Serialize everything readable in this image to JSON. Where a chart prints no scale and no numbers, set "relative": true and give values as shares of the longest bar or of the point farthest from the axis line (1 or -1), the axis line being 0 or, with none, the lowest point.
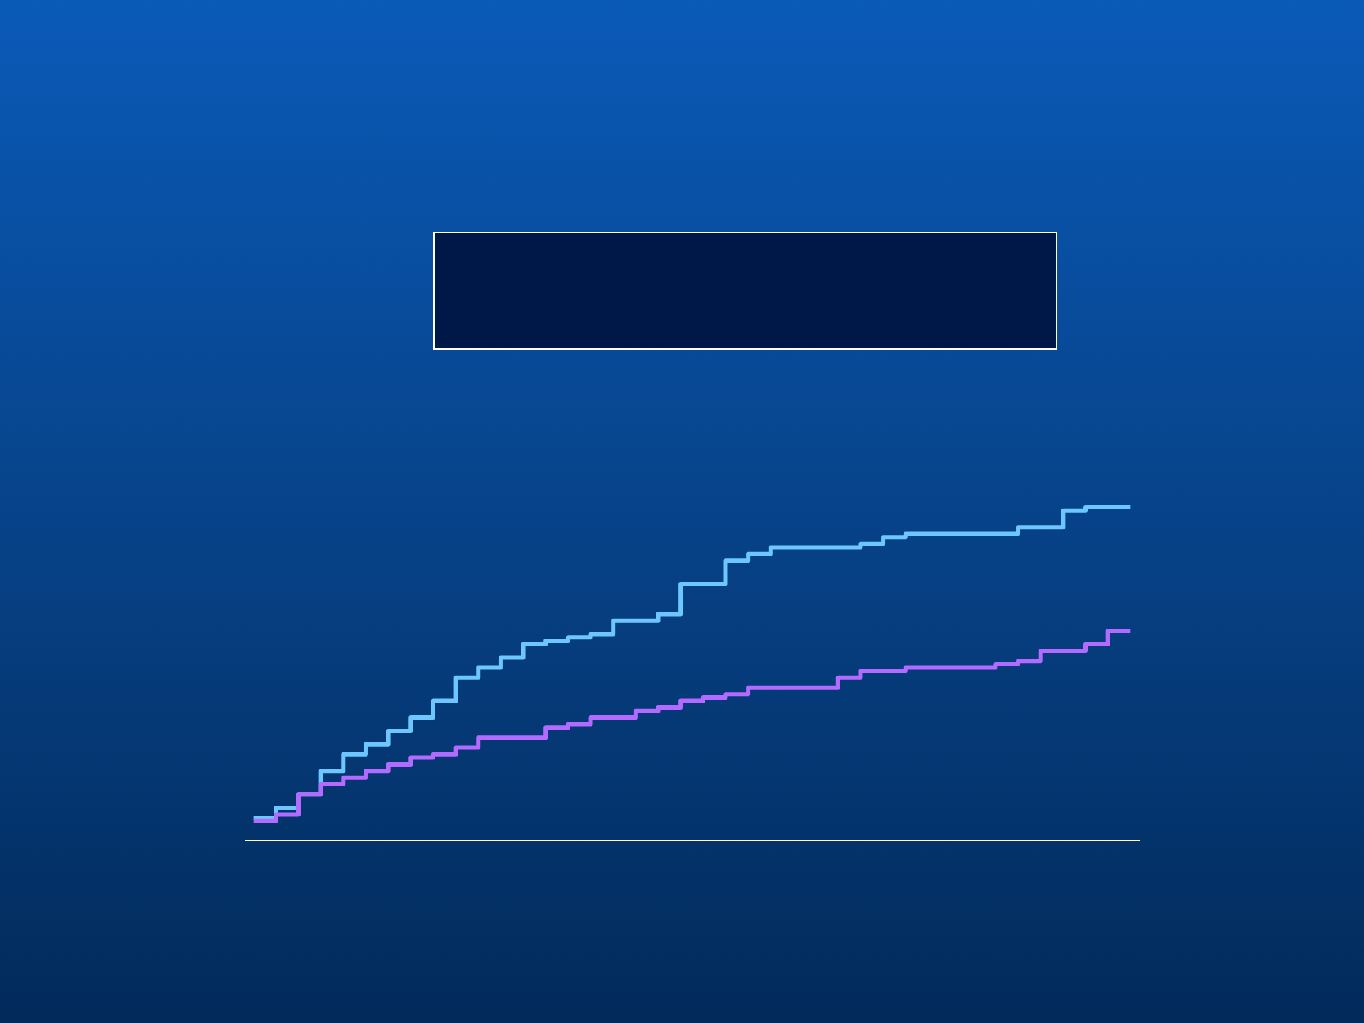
{
  "chart_data": {
    "type": "step",
    "relative": true,
    "tick_labels": false,
    "legend": false,
    "categories": [
      null,
      null,
      null,
      null,
      null,
      null,
      null,
      null,
      null,
      null,
      null,
      null,
      null,
      null,
      null,
      null,
      null,
      null,
      null,
      null,
      null,
      null,
      null,
      null,
      null,
      null,
      null,
      null,
      null,
      null,
      null,
      null,
      null,
      null,
      null,
      null,
      null,
      null,
      null,
      null
    ],
    "series": [
      {
        "color": "#6ec6ff",
        "values": [
          0.07,
          0.1,
          0.14,
          0.21,
          0.26,
          0.29,
          0.33,
          0.37,
          0.42,
          0.49,
          0.52,
          0.55,
          0.59,
          0.6,
          0.61,
          0.62,
          0.66,
          0.66,
          0.68,
          0.77,
          0.77,
          0.84,
          0.86,
          0.88,
          0.88,
          0.88,
          0.88,
          0.89,
          0.91,
          0.92,
          0.92,
          0.92,
          0.92,
          0.92,
          0.94,
          0.94,
          0.99,
          1,
          1,
          1
        ]
      },
      {
        "color": "#b36bff",
        "values": [
          0.06,
          0.08,
          0.14,
          0.17,
          0.19,
          0.21,
          0.23,
          0.25,
          0.26,
          0.28,
          0.31,
          0.31,
          0.31,
          0.34,
          0.35,
          0.37,
          0.37,
          0.39,
          0.4,
          0.42,
          0.43,
          0.44,
          0.46,
          0.46,
          0.46,
          0.46,
          0.49,
          0.51,
          0.51,
          0.52,
          0.52,
          0.52,
          0.52,
          0.53,
          0.54,
          0.57,
          0.57,
          0.59,
          0.63,
          0.63
        ]
      }
    ]
  }
}
